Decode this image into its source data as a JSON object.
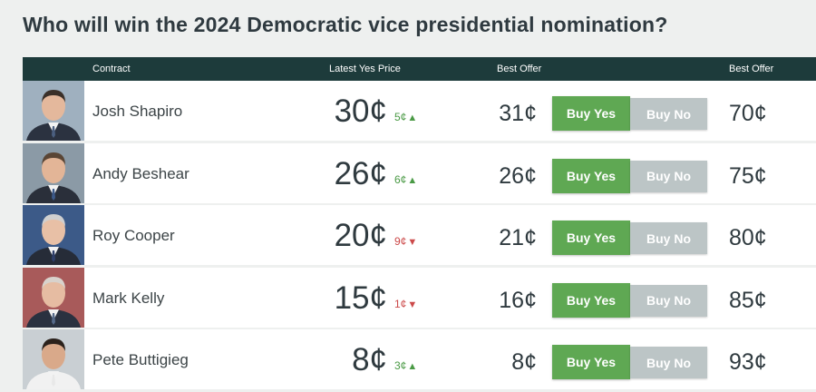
{
  "title": "Who will win the 2024 Democratic vice presidential nomination?",
  "header": {
    "contract": "Contract",
    "latest_yes_price": "Latest Yes Price",
    "best_offer_yes": "Best Offer",
    "best_offer_no": "Best Offer"
  },
  "colors": {
    "header_bg": "#1d3b3b",
    "buy_yes": "#5fa853",
    "buy_no": "#bcc5c6",
    "up": "#4a9a45",
    "down": "#cc4a4a"
  },
  "rows": [
    {
      "name": "Josh Shapiro",
      "price": "30¢",
      "change": "5¢",
      "direction": "up",
      "arrow": "▲",
      "best_yes": "31¢",
      "buy_yes": "Buy Yes",
      "buy_no": "Buy No",
      "best_no": "70¢",
      "avatar_icon": "portrait-icon"
    },
    {
      "name": "Andy Beshear",
      "price": "26¢",
      "change": "6¢",
      "direction": "up",
      "arrow": "▲",
      "best_yes": "26¢",
      "buy_yes": "Buy Yes",
      "buy_no": "Buy No",
      "best_no": "75¢",
      "avatar_icon": "portrait-icon"
    },
    {
      "name": "Roy Cooper",
      "price": "20¢",
      "change": "9¢",
      "direction": "down",
      "arrow": "▼",
      "best_yes": "21¢",
      "buy_yes": "Buy Yes",
      "buy_no": "Buy No",
      "best_no": "80¢",
      "avatar_icon": "portrait-icon"
    },
    {
      "name": "Mark Kelly",
      "price": "15¢",
      "change": "1¢",
      "direction": "down",
      "arrow": "▼",
      "best_yes": "16¢",
      "buy_yes": "Buy Yes",
      "buy_no": "Buy No",
      "best_no": "85¢",
      "avatar_icon": "portrait-icon"
    },
    {
      "name": "Pete Buttigieg",
      "price": "8¢",
      "change": "3¢",
      "direction": "up",
      "arrow": "▲",
      "best_yes": "8¢",
      "buy_yes": "Buy Yes",
      "buy_no": "Buy No",
      "best_no": "93¢",
      "avatar_icon": "portrait-icon"
    }
  ]
}
